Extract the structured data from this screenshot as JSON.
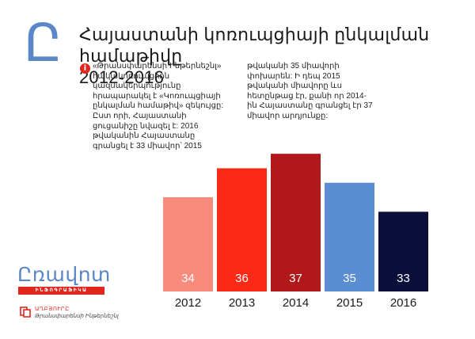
{
  "header": {
    "logo_letter": "Ը",
    "title_line1": "Հայաստանի կոռուպցիայի ընկալման համաթիվը",
    "title_line2": "2012-2016"
  },
  "description": {
    "info_icon": "i",
    "left_text": "«Թրանսփարենսի Ինթերնեշնլ» հակակոռուպցիոն կազմակերպությունը հրապարակել է «Կոռուպցիայի ընկալման համաթիվ» զեկույցը: Ըստ որի, Հայաստանի ցուցանիշը նվազել է: 2016 թվականին Հայաստանը գրանցել է 33 միավոր՝ 2015",
    "right_text": "թվականի 35 միավորի փոխարեն: Ի դեպ 2015 թվականի միավորը ևս հետընթաց էր, քանի որ 2014-ին Հայաստանը գրանցել էր 37 միավոր արդյունքը:"
  },
  "chart_data": {
    "type": "bar",
    "categories": [
      "2012",
      "2013",
      "2014",
      "2015",
      "2016"
    ],
    "values": [
      34,
      36,
      37,
      35,
      33
    ],
    "data_labels": [
      "34",
      "36",
      "37",
      "35",
      "33"
    ],
    "bar_colors": [
      "#f98b7c",
      "#fb2a17",
      "#b0181a",
      "#5b8dd3",
      "#0a0f3a"
    ],
    "title": "",
    "xlabel": "",
    "ylabel": "",
    "ylim": [
      27.5,
      37.5
    ],
    "grid": false,
    "legend": "none"
  },
  "footer": {
    "brand_name": "Ըռավոտ",
    "brand_tagline": "ԻՆՖՈԳՐԱՖԻԿԱ",
    "source_icon": "document-icon",
    "source_label": "ԱՂԲՅՈՒՐԸ",
    "source_value": "Թրանսփարենսի Ինթերնեշնլ"
  },
  "colors": {
    "accent_blue": "#5b87c9",
    "accent_red": "#e1261c"
  }
}
